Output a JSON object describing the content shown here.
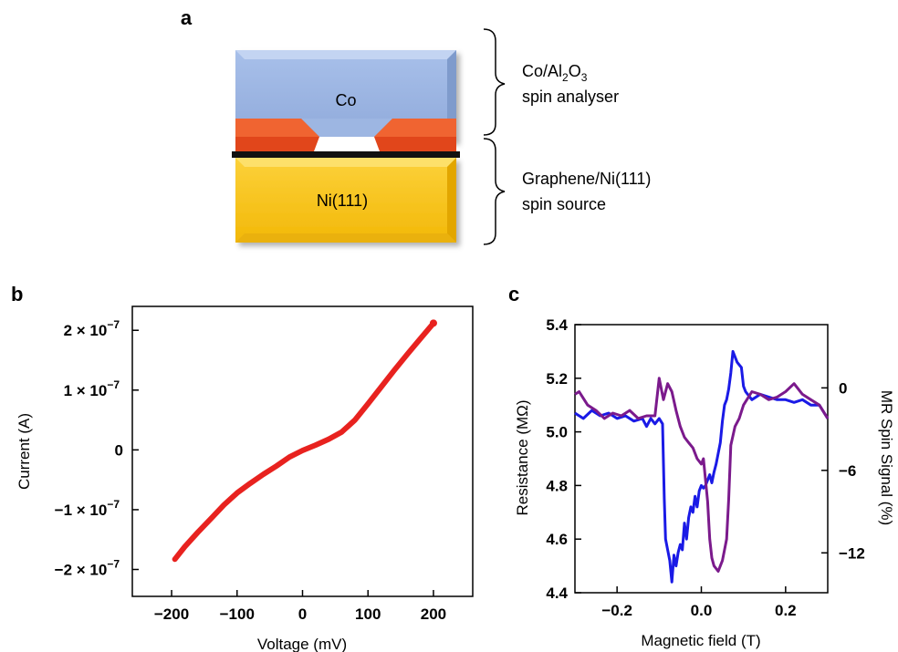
{
  "panel_a": {
    "letter": "a",
    "layers": {
      "top": "Co",
      "bottom": "Ni(111)"
    },
    "annotations": {
      "upper_line1_base": "Co/Al",
      "upper_line1_sub1": "2",
      "upper_line1_mid": "O",
      "upper_line1_sub2": "3",
      "upper_line2": "spin analyser",
      "lower_line1": "Graphene/Ni(111)",
      "lower_line2": "spin source"
    },
    "colors": {
      "co": "#9db6e2",
      "oxide": "#e1461b",
      "graphene": "#111111",
      "ni": "#f5c217",
      "gap": "#ffffff"
    }
  },
  "chart_data": [
    {
      "id": "b",
      "type": "line",
      "panel_letter": "b",
      "xlabel": "Voltage (mV)",
      "ylabel": "Current (A)",
      "xlim": [
        -260,
        260
      ],
      "ylim": [
        -2.45e-07,
        2.4e-07
      ],
      "xticks": [
        -200,
        -100,
        0,
        100,
        200
      ],
      "xtick_labels": [
        "−200",
        "−100",
        "0",
        "100",
        "200"
      ],
      "yticks": [
        -2e-07,
        -1e-07,
        0,
        1e-07,
        2e-07
      ],
      "ytick_labels": [
        "−2 × 10",
        "−1 × 10",
        "0",
        "1 × 10",
        "2 × 10"
      ],
      "ytick_exponents": [
        "−7",
        "−7",
        "",
        "−7",
        "−7"
      ],
      "grid": false,
      "series": [
        {
          "color": "#e8221f",
          "x": [
            -195,
            -180,
            -160,
            -140,
            -120,
            -100,
            -80,
            -60,
            -40,
            -20,
            0,
            20,
            40,
            60,
            80,
            100,
            120,
            140,
            160,
            180,
            200
          ],
          "y": [
            -1.83e-07,
            -1.62e-07,
            -1.38e-07,
            -1.15e-07,
            -9.2e-08,
            -7.2e-08,
            -5.6e-08,
            -4.1e-08,
            -2.7e-08,
            -1.2e-08,
            -1e-09,
            8e-09,
            1.8e-08,
            3e-08,
            5e-08,
            7.7e-08,
            1.05e-07,
            1.33e-07,
            1.6e-07,
            1.86e-07,
            2.12e-07
          ]
        }
      ]
    },
    {
      "id": "c",
      "type": "line",
      "panel_letter": "c",
      "xlabel": "Magnetic field (T)",
      "ylabel": "Resistance (MΩ)",
      "y2label": "MR Spin Signal (%)",
      "xlim": [
        -0.3,
        0.3
      ],
      "ylim": [
        4.4,
        5.4
      ],
      "y2lim": [
        -14.9,
        4.6
      ],
      "xticks": [
        -0.2,
        0.0,
        0.2
      ],
      "xtick_labels": [
        "−0.2",
        "0.0",
        "0.2"
      ],
      "yticks": [
        4.4,
        4.6,
        4.8,
        5.0,
        5.2,
        5.4
      ],
      "ytick_labels": [
        "4.4",
        "4.6",
        "4.8",
        "5.0",
        "5.2",
        "5.4"
      ],
      "y2ticks": [
        0,
        -6,
        -12
      ],
      "y2tick_labels": [
        "0",
        "−6",
        "−12"
      ],
      "grid": false,
      "series": [
        {
          "axis": "left",
          "color": "#1a1ae6",
          "x": [
            -0.3,
            -0.28,
            -0.26,
            -0.24,
            -0.22,
            -0.2,
            -0.18,
            -0.16,
            -0.14,
            -0.13,
            -0.12,
            -0.11,
            -0.1,
            -0.092,
            -0.088,
            -0.085,
            -0.08,
            -0.075,
            -0.07,
            -0.065,
            -0.06,
            -0.055,
            -0.05,
            -0.045,
            -0.04,
            -0.035,
            -0.03,
            -0.025,
            -0.02,
            -0.015,
            -0.01,
            -0.005,
            0.0,
            0.005,
            0.01,
            0.015,
            0.02,
            0.025,
            0.03,
            0.035,
            0.04,
            0.045,
            0.05,
            0.055,
            0.06,
            0.065,
            0.07,
            0.075,
            0.08,
            0.085,
            0.09,
            0.095,
            0.1,
            0.105,
            0.11,
            0.12,
            0.14,
            0.16,
            0.18,
            0.2,
            0.22,
            0.24,
            0.26,
            0.28,
            0.3
          ],
          "y": [
            5.07,
            5.05,
            5.08,
            5.06,
            5.07,
            5.05,
            5.06,
            5.04,
            5.05,
            5.02,
            5.05,
            5.03,
            5.05,
            5.03,
            4.75,
            4.6,
            4.56,
            4.52,
            4.44,
            4.54,
            4.5,
            4.55,
            4.58,
            4.56,
            4.66,
            4.6,
            4.68,
            4.72,
            4.7,
            4.76,
            4.72,
            4.78,
            4.8,
            4.79,
            4.8,
            4.82,
            4.84,
            4.81,
            4.85,
            4.88,
            4.92,
            4.96,
            5.04,
            5.1,
            5.12,
            5.16,
            5.22,
            5.3,
            5.28,
            5.26,
            5.25,
            5.24,
            5.17,
            5.15,
            5.14,
            5.12,
            5.14,
            5.13,
            5.12,
            5.12,
            5.11,
            5.12,
            5.1,
            5.1,
            5.05
          ]
        },
        {
          "axis": "left",
          "color": "#7b1a8c",
          "x": [
            -0.3,
            -0.29,
            -0.27,
            -0.25,
            -0.23,
            -0.21,
            -0.19,
            -0.17,
            -0.15,
            -0.13,
            -0.11,
            -0.1,
            -0.09,
            -0.08,
            -0.07,
            -0.06,
            -0.05,
            -0.04,
            -0.03,
            -0.02,
            -0.01,
            0.0,
            0.005,
            0.01,
            0.015,
            0.02,
            0.025,
            0.03,
            0.035,
            0.04,
            0.045,
            0.05,
            0.055,
            0.06,
            0.065,
            0.07,
            0.08,
            0.09,
            0.1,
            0.12,
            0.14,
            0.16,
            0.18,
            0.2,
            0.22,
            0.24,
            0.26,
            0.28,
            0.3
          ],
          "y": [
            5.14,
            5.15,
            5.1,
            5.08,
            5.05,
            5.07,
            5.06,
            5.08,
            5.05,
            5.06,
            5.06,
            5.2,
            5.12,
            5.18,
            5.15,
            5.08,
            5.02,
            4.98,
            4.96,
            4.94,
            4.9,
            4.88,
            4.9,
            4.82,
            4.74,
            4.6,
            4.53,
            4.5,
            4.49,
            4.48,
            4.5,
            4.52,
            4.56,
            4.6,
            4.75,
            4.95,
            5.02,
            5.05,
            5.1,
            5.15,
            5.14,
            5.12,
            5.13,
            5.15,
            5.18,
            5.14,
            5.12,
            5.1,
            5.05
          ]
        }
      ]
    }
  ]
}
